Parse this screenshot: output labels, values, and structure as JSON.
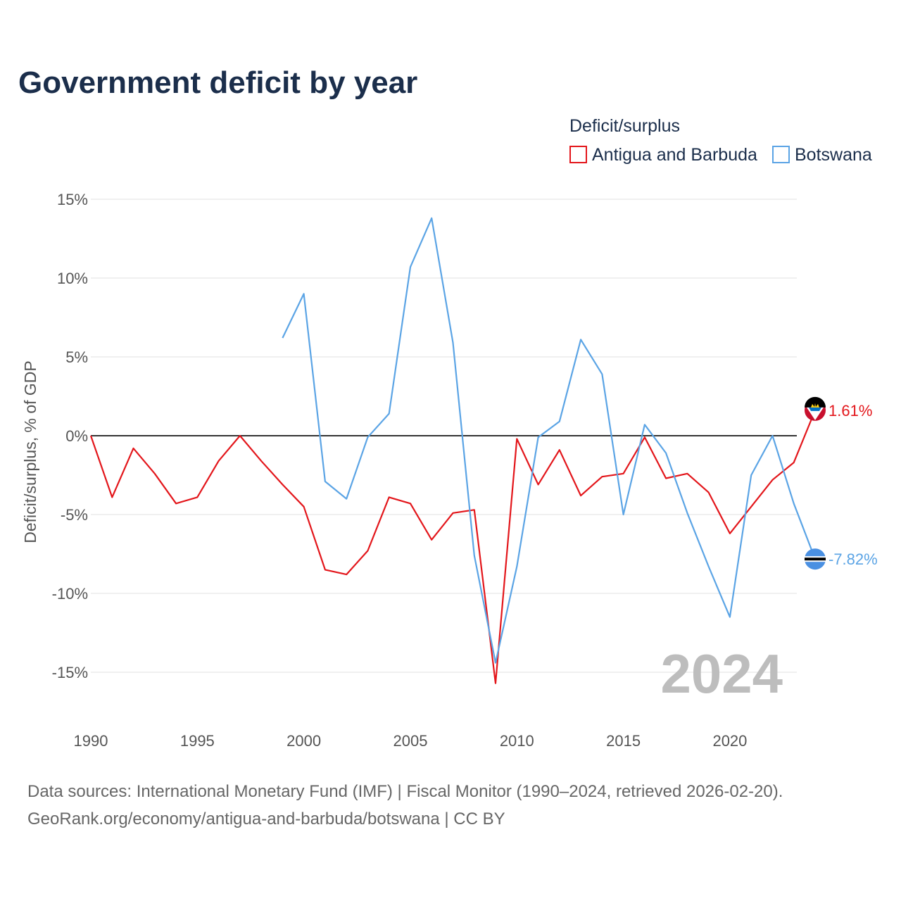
{
  "colors": {
    "antigua": "#e3161b",
    "botswana": "#5ba4e5",
    "title": "#1b2e4b"
  },
  "chart_data": {
    "type": "line",
    "title": "Government deficit by year",
    "ylabel": "Deficit/surplus, % of GDP",
    "xlabel": "",
    "legend_title": "Deficit/surplus",
    "legend_position": "top-right",
    "xlim": [
      1990,
      2024
    ],
    "ylim": [
      -18,
      15
    ],
    "yticks": [
      15,
      10,
      5,
      0,
      -5,
      -10,
      -15
    ],
    "ytick_labels": [
      "15%",
      "10%",
      "5%",
      "0%",
      "-5%",
      "-10%",
      "-15%"
    ],
    "xticks": [
      1990,
      1995,
      2000,
      2005,
      2010,
      2015,
      2020
    ],
    "xtick_labels": [
      "1990",
      "1995",
      "2000",
      "2005",
      "2010",
      "2015",
      "2020"
    ],
    "year_watermark": "2024",
    "series": [
      {
        "name": "Antigua and Barbuda",
        "color": "#e3161b",
        "end_label": "1.61%",
        "x": [
          1990,
          1991,
          1992,
          1993,
          1994,
          1995,
          1996,
          1997,
          1998,
          1999,
          2000,
          2001,
          2002,
          2003,
          2004,
          2005,
          2006,
          2007,
          2008,
          2009,
          2010,
          2011,
          2012,
          2013,
          2014,
          2015,
          2016,
          2017,
          2018,
          2019,
          2020,
          2021,
          2022,
          2023,
          2024
        ],
        "values": [
          0.0,
          -3.9,
          -0.8,
          -2.4,
          -4.3,
          -3.9,
          -1.6,
          0.0,
          -1.6,
          -3.1,
          -4.5,
          -8.5,
          -8.8,
          -7.3,
          -3.9,
          -4.3,
          -6.6,
          -4.9,
          -4.7,
          -15.7,
          -0.2,
          -3.1,
          -0.9,
          -3.8,
          -2.6,
          -2.4,
          -0.1,
          -2.7,
          -2.4,
          -3.6,
          -6.2,
          -4.5,
          -2.8,
          -1.7,
          1.61
        ]
      },
      {
        "name": "Botswana",
        "color": "#5ba4e5",
        "end_label": "-7.82%",
        "x": [
          1999,
          2000,
          2001,
          2002,
          2003,
          2004,
          2005,
          2006,
          2007,
          2008,
          2009,
          2010,
          2011,
          2012,
          2013,
          2014,
          2015,
          2016,
          2017,
          2018,
          2019,
          2020,
          2021,
          2022,
          2023,
          2024
        ],
        "values": [
          6.2,
          9.0,
          -2.9,
          -4.0,
          -0.1,
          1.4,
          10.7,
          13.8,
          5.9,
          -7.6,
          -14.4,
          -8.3,
          -0.1,
          0.9,
          6.1,
          3.9,
          -5.0,
          0.7,
          -1.1,
          -4.9,
          -8.3,
          -11.5,
          -2.5,
          0.0,
          -4.3,
          -7.82
        ]
      }
    ]
  },
  "footer": {
    "source_line1": "Data sources: International Monetary Fund (IMF) | Fiscal Monitor (1990–2024, retrieved 2026-02-20).",
    "source_line2": "GeoRank.org/economy/antigua-and-barbuda/botswana | CC BY"
  }
}
